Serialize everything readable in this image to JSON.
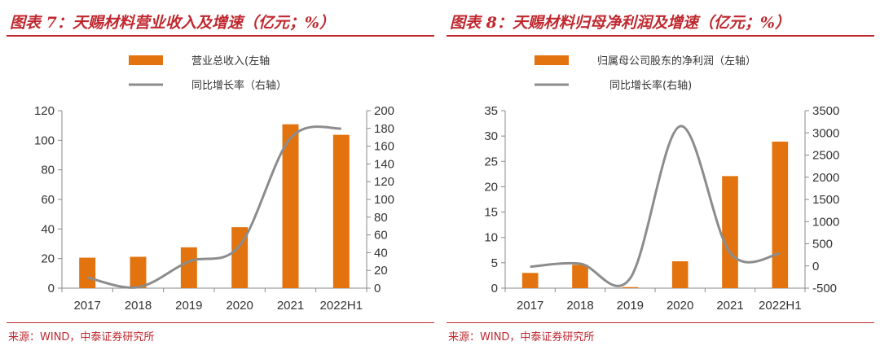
{
  "colors": {
    "accent": "#c0282f",
    "bar": "#e2730e",
    "line": "#8c8c8c",
    "axis": "#888888",
    "tick": "#333333"
  },
  "chart_data": [
    {
      "type": "bar",
      "title": "图表 7：天赐材料营业收入及增速（亿元；%）",
      "source": "来源：WIND，中泰证券研究所",
      "categories": [
        "2017",
        "2018",
        "2019",
        "2020",
        "2021",
        "2022H1"
      ],
      "x_tick_labels": [
        "2017",
        "2018",
        "2019",
        "2020",
        "2021",
        "2022H1"
      ],
      "legend_position": "top",
      "grid": false,
      "series": [
        {
          "name": "营业总收入(左轴",
          "type": "bar",
          "axis": "left",
          "values": [
            20.6,
            21.2,
            27.6,
            41.2,
            110.8,
            103.7
          ]
        },
        {
          "name": "同比增长率（右轴）",
          "type": "line",
          "axis": "right",
          "values": [
            12,
            1,
            30,
            48,
            169,
            180
          ]
        }
      ],
      "y_left": {
        "lim": [
          0,
          120
        ],
        "ticks": [
          0,
          20,
          40,
          60,
          80,
          100,
          120
        ]
      },
      "y_right": {
        "lim": [
          0,
          200
        ],
        "ticks": [
          0,
          20,
          40,
          60,
          80,
          100,
          120,
          140,
          160,
          180,
          200
        ]
      }
    },
    {
      "type": "bar",
      "title": "图表 8：天赐材料归母净利润及增速（亿元；%）",
      "source": "来源：WIND，中泰证券研究所",
      "categories": [
        "2017",
        "2018",
        "2019",
        "2020",
        "2021",
        "2022H1"
      ],
      "x_tick_labels": [
        "2017",
        "2018",
        "2019",
        "2020",
        "2021",
        "2022H1"
      ],
      "legend_position": "top",
      "grid": false,
      "series": [
        {
          "name": "归属母公司股东的净利润（左轴）",
          "type": "bar",
          "axis": "left",
          "values": [
            3.0,
            4.6,
            0.2,
            5.3,
            22.1,
            28.9
          ]
        },
        {
          "name": "同比增长率(右轴)",
          "type": "line",
          "axis": "right",
          "values": [
            -15,
            50,
            -280,
            3150,
            300,
            280
          ]
        }
      ],
      "y_left": {
        "lim": [
          0,
          35
        ],
        "ticks": [
          0,
          5,
          10,
          15,
          20,
          25,
          30,
          35
        ]
      },
      "y_right": {
        "lim": [
          -500,
          3500
        ],
        "ticks": [
          -500,
          0,
          500,
          1000,
          1500,
          2000,
          2500,
          3000,
          3500
        ]
      }
    }
  ]
}
